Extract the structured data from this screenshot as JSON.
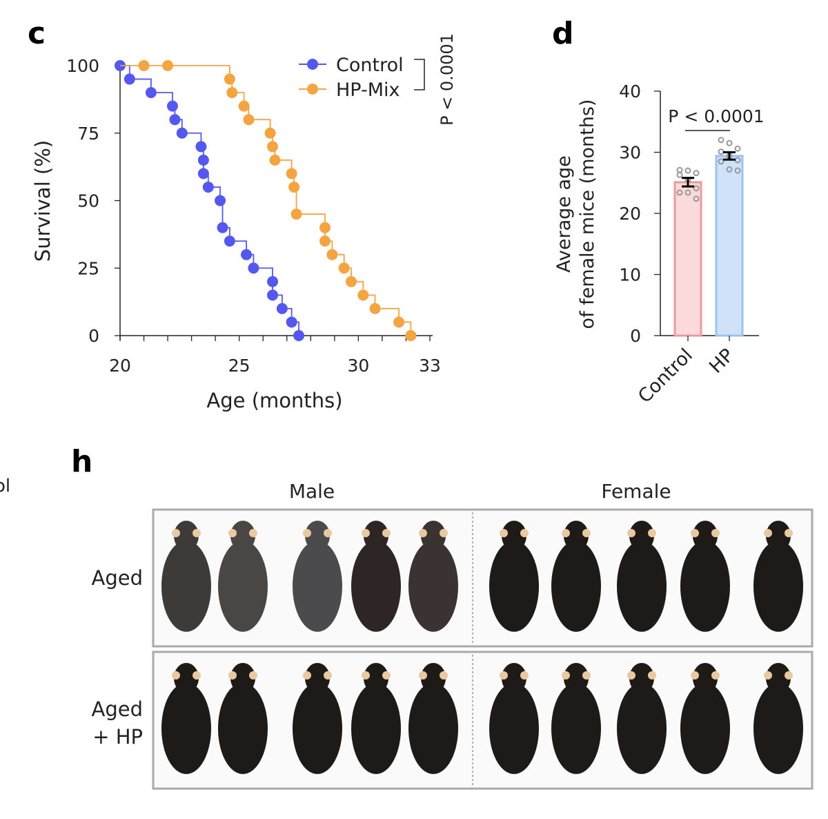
{
  "fragment_text": "ol",
  "chart_data": [
    {
      "panel": "c",
      "type": "line",
      "subtype": "kaplan-meier step",
      "xlabel": "Age (months)",
      "ylabel": "Survival (%)",
      "xlim": [
        20,
        33
      ],
      "ylim": [
        0,
        100
      ],
      "xticks": [
        "20",
        "25",
        "30",
        "33"
      ],
      "yticks": [
        "0",
        "25",
        "50",
        "75",
        "100"
      ],
      "grid": false,
      "legend_placement": "top-right",
      "annotation": "P < 0.0001",
      "series": [
        {
          "name": "Control",
          "color": "#5558ee",
          "x": [
            20.0,
            20.4,
            21.3,
            22.2,
            22.3,
            22.6,
            23.4,
            23.5,
            23.5,
            23.7,
            24.2,
            24.3,
            24.6,
            25.3,
            25.6,
            26.4,
            26.4,
            26.8,
            27.2,
            27.5
          ],
          "y": [
            100,
            95,
            90,
            85,
            80,
            75,
            70,
            65,
            60,
            55,
            50,
            40,
            35,
            30,
            25,
            20,
            15,
            10,
            5,
            0
          ]
        },
        {
          "name": "HP-Mix",
          "color": "#f5a442",
          "x": [
            21.0,
            22.0,
            24.6,
            24.7,
            25.2,
            25.4,
            26.3,
            26.4,
            26.5,
            27.2,
            27.3,
            27.4,
            28.6,
            28.6,
            28.9,
            29.4,
            29.7,
            30.2,
            30.7,
            31.7,
            32.2
          ],
          "y": [
            100,
            100,
            95,
            90,
            85,
            80,
            75,
            70,
            65,
            60,
            55,
            45,
            40,
            35,
            30,
            25,
            20,
            15,
            10,
            5,
            0
          ]
        }
      ]
    },
    {
      "panel": "d",
      "type": "bar",
      "categories": [
        "Control",
        "HP"
      ],
      "values": [
        25.1,
        29.4
      ],
      "errors": [
        0.7,
        0.6
      ],
      "colors": [
        "#fadada",
        "#cfe2fa"
      ],
      "edge_colors": [
        "#ee9a9a",
        "#9cc3ee"
      ],
      "points": [
        [
          27.1,
          27.0,
          26.6,
          26.3,
          25.5,
          24.1,
          23.4,
          23.4,
          22.4
        ],
        [
          32.0,
          31.5,
          30.6,
          30.1,
          29.4,
          28.7,
          28.5,
          27.2,
          27.0
        ]
      ],
      "ylabel_lines": [
        "Average age",
        "of female mice (months)"
      ],
      "ylim": [
        0,
        40
      ],
      "yticks": [
        "0",
        "10",
        "20",
        "30",
        "40"
      ],
      "annotation": "P < 0.0001"
    }
  ],
  "panel_h": {
    "label": "h",
    "columns": [
      "Male",
      "Female"
    ],
    "rows": [
      {
        "label_lines": [
          "Aged"
        ]
      },
      {
        "label_lines": [
          "Aged",
          "+ HP"
        ]
      }
    ],
    "mice_per_group": 5
  }
}
